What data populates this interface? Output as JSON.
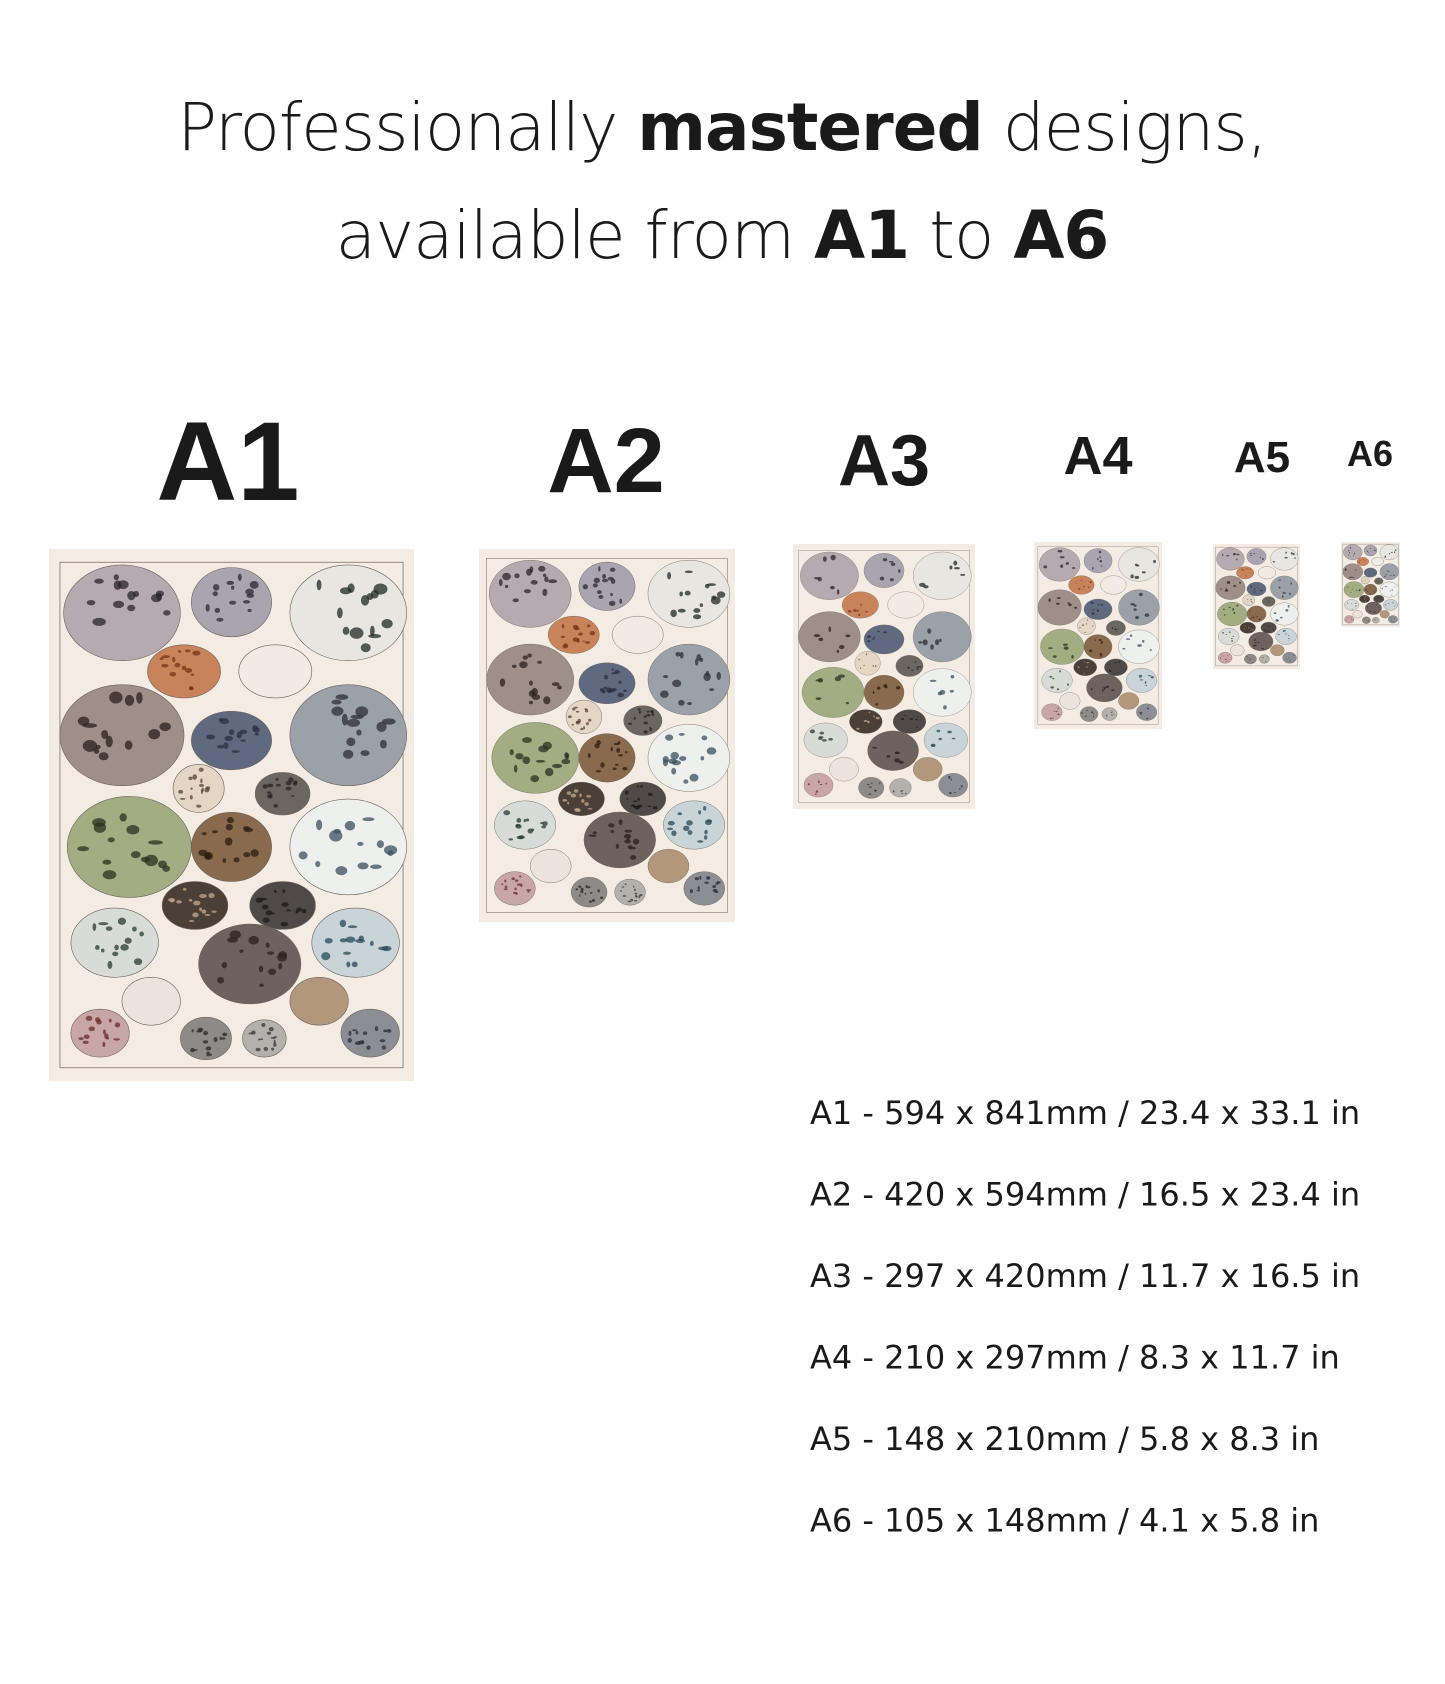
{
  "heading": {
    "lines": [
      [
        {
          "text": "Professionally "
        },
        {
          "text": "mastered",
          "bold": true
        },
        {
          "text": " designs,"
        }
      ],
      [
        {
          "text": "available from "
        },
        {
          "text": "A1",
          "bold": true
        },
        {
          "text": " to "
        },
        {
          "text": "A6",
          "bold": true
        }
      ]
    ]
  },
  "sizes": [
    "A1",
    "A2",
    "A3",
    "A4",
    "A5",
    "A6"
  ],
  "size_list": [
    "A1 - 594 x 841mm  /  23.4 x 33.1 in",
    "A2  - 420 x 594mm / 16.5 x 23.4 in",
    "A3 - 297 x 420mm  / 11.7 x 16.5 in",
    "A4  - 210 x 297mm  / 8.3 x 11.7 in",
    "A5 - 148 x 210mm / 5.8 x 8.3 in",
    "A6 - 105 x 148mm / 4.1 x 5.8 in"
  ]
}
